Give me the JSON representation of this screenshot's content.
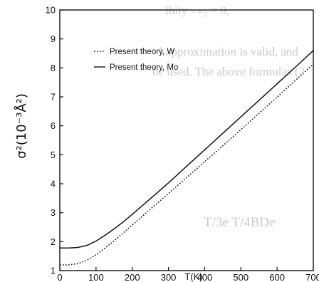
{
  "chart_data": {
    "type": "line",
    "title": "",
    "xlabel": "T(K)",
    "ylabel": "σ²(10⁻³Å²)",
    "xlim": [
      0,
      700
    ],
    "ylim": [
      1,
      10
    ],
    "xticks": [
      0,
      100,
      200,
      300,
      400,
      500,
      600,
      700
    ],
    "yticks": [
      1,
      2,
      3,
      4,
      5,
      6,
      7,
      8,
      9,
      10
    ],
    "grid": false,
    "legend_position": "upper-left",
    "series": [
      {
        "name": "Present theory, W",
        "style": "dotted",
        "color": "#111111",
        "x": [
          0,
          25,
          50,
          75,
          100,
          125,
          150,
          175,
          200,
          250,
          300,
          350,
          400,
          450,
          500,
          550,
          600,
          650,
          700
        ],
        "y": [
          1.2,
          1.2,
          1.24,
          1.36,
          1.55,
          1.78,
          2.03,
          2.3,
          2.57,
          3.12,
          3.66,
          4.21,
          4.76,
          5.31,
          5.87,
          6.43,
          6.99,
          7.56,
          8.13
        ]
      },
      {
        "name": "Present theory, Mo",
        "style": "solid",
        "color": "#111111",
        "x": [
          0,
          25,
          50,
          75,
          100,
          125,
          150,
          175,
          200,
          250,
          300,
          350,
          400,
          450,
          500,
          550,
          600,
          650,
          700
        ],
        "y": [
          1.78,
          1.78,
          1.8,
          1.87,
          2.02,
          2.22,
          2.44,
          2.68,
          2.94,
          3.48,
          4.03,
          4.6,
          5.17,
          5.74,
          6.31,
          6.88,
          7.45,
          8.02,
          8.6
        ]
      }
    ]
  },
  "background_text": {
    "line1": "lbity ₋₊₂ = 0,",
    "line2": "l approximation is valid, and",
    "line3": "be used. The above formulas (2",
    "line4": "T/3e  T/4BDe"
  }
}
